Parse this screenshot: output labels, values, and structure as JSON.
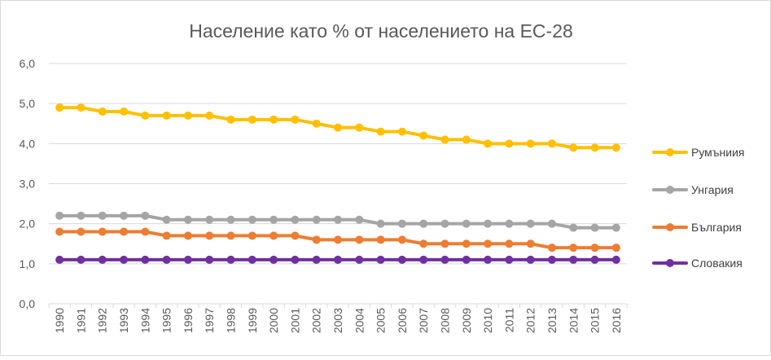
{
  "chart_data": {
    "type": "line",
    "title": "Население като % от населението на ЕС-28",
    "x": [
      "1990",
      "1991",
      "1992",
      "1993",
      "1994",
      "1995",
      "1996",
      "1997",
      "1998",
      "1999",
      "2000",
      "2001",
      "2002",
      "2003",
      "2004",
      "2005",
      "2006",
      "2007",
      "2008",
      "2009",
      "2010",
      "2011",
      "2012",
      "2013",
      "2014",
      "2015",
      "2016"
    ],
    "y_ticks": [
      "0,0",
      "1,0",
      "2,0",
      "3,0",
      "4,0",
      "5,0",
      "6,0"
    ],
    "ylim": [
      0,
      6
    ],
    "grid": true,
    "legend_position": "right",
    "series": [
      {
        "name": "Румъниия",
        "color": "#FFC000",
        "values": [
          4.9,
          4.9,
          4.8,
          4.8,
          4.7,
          4.7,
          4.7,
          4.7,
          4.6,
          4.6,
          4.6,
          4.6,
          4.5,
          4.4,
          4.4,
          4.3,
          4.3,
          4.2,
          4.1,
          4.1,
          4.0,
          4.0,
          4.0,
          4.0,
          3.9,
          3.9,
          3.9
        ]
      },
      {
        "name": "Унгария",
        "color": "#A5A5A5",
        "values": [
          2.2,
          2.2,
          2.2,
          2.2,
          2.2,
          2.1,
          2.1,
          2.1,
          2.1,
          2.1,
          2.1,
          2.1,
          2.1,
          2.1,
          2.1,
          2.0,
          2.0,
          2.0,
          2.0,
          2.0,
          2.0,
          2.0,
          2.0,
          2.0,
          1.9,
          1.9,
          1.9
        ]
      },
      {
        "name": "България",
        "color": "#ED7D31",
        "values": [
          1.8,
          1.8,
          1.8,
          1.8,
          1.8,
          1.7,
          1.7,
          1.7,
          1.7,
          1.7,
          1.7,
          1.7,
          1.6,
          1.6,
          1.6,
          1.6,
          1.6,
          1.5,
          1.5,
          1.5,
          1.5,
          1.5,
          1.5,
          1.4,
          1.4,
          1.4,
          1.4
        ]
      },
      {
        "name": "Словакия",
        "color": "#7030A0",
        "values": [
          1.1,
          1.1,
          1.1,
          1.1,
          1.1,
          1.1,
          1.1,
          1.1,
          1.1,
          1.1,
          1.1,
          1.1,
          1.1,
          1.1,
          1.1,
          1.1,
          1.1,
          1.1,
          1.1,
          1.1,
          1.1,
          1.1,
          1.1,
          1.1,
          1.1,
          1.1,
          1.1
        ]
      }
    ]
  }
}
